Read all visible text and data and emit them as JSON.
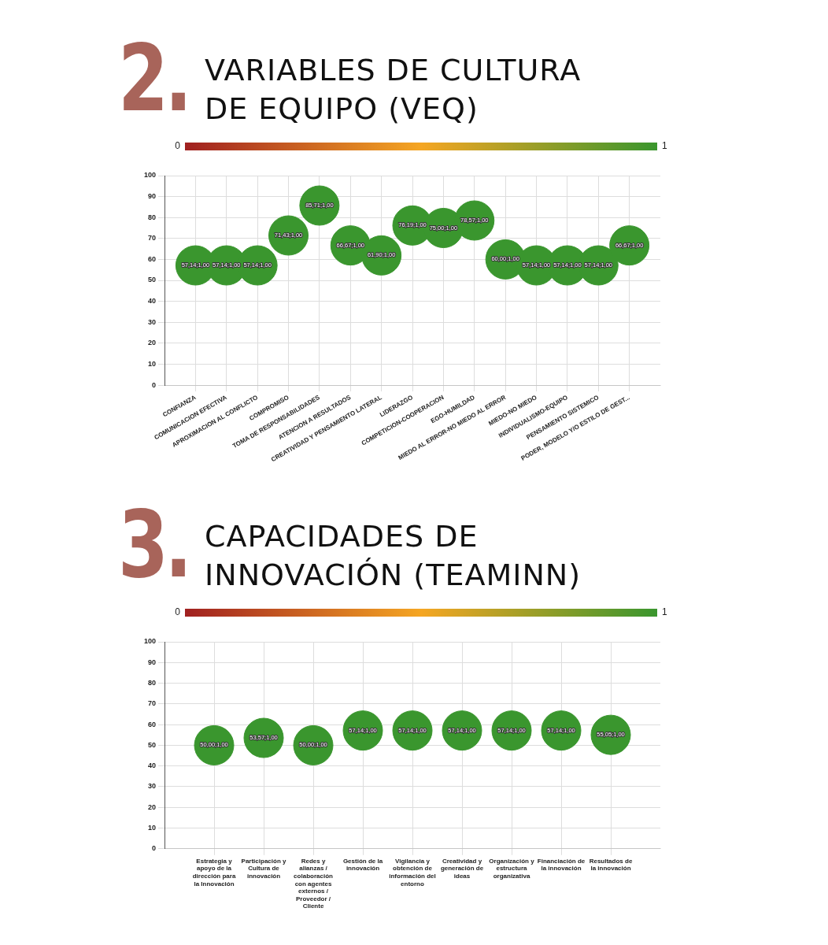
{
  "chart_data": [
    {
      "type": "bubble",
      "title": "VARIABLES DE CULTURA DE EQUIPO (VEQ)",
      "annotations": [
        "2.",
        "0",
        "1"
      ],
      "categories": [
        "CONFIANZA",
        "COMUNICACION EFECTIVA",
        "APROXIMACION AL CONFLICTO",
        "COMPROMISO",
        "TOMA DE RESPONSABILIDADES",
        "ATENCION A RESULTADOS",
        "CREATIVIDAD Y PENSAMIENTO LATERAL",
        "LIDERAZGO",
        "COMPETICION-COOPERACION",
        "EGO-HUMILDAD",
        "MIEDO AL ERROR-NO MIEDO AL ERROR",
        "MIEDO-NO MIEDO",
        "INDIVIDUALISMO-EQUIPO",
        "PENSAMIENTO SISTEMICO",
        "PODER, MODELO Y/O ESTILO DE GEST..."
      ],
      "values": [
        57.14,
        57.14,
        57.14,
        71.43,
        85.71,
        66.67,
        61.9,
        76.19,
        75,
        78.57,
        60,
        57.14,
        57.14,
        57.14,
        66.67
      ],
      "value_labels": [
        "57,14;1,00",
        "57,14;1,00",
        "57,14;1,00",
        "71,43;1,00",
        "85,71;1,00",
        "66,67;1,00",
        "61,90;1,00",
        "76,19;1,00",
        "75,00;1,00",
        "78,57;1,00",
        "60,00;1,00",
        "57,14;1,00",
        "57,14;1,00",
        "57,14;1,00",
        "66,67;1,00"
      ],
      "sizes": [
        1,
        1,
        1,
        1,
        1,
        1,
        1,
        1,
        1,
        1,
        1,
        1,
        1,
        1,
        1
      ],
      "colors": [
        "#3a962e",
        "#3a962e",
        "#3a962e",
        "#3a962e",
        "#3a962e",
        "#3a962e",
        "#3a962e",
        "#3a962e",
        "#3a962e",
        "#3a962e",
        "#3a962e",
        "#3a962e",
        "#3a962e",
        "#3a962e",
        "#3a962e"
      ],
      "ylim": [
        0,
        100
      ],
      "yticks": [
        0,
        10,
        20,
        30,
        40,
        50,
        60,
        70,
        80,
        90,
        100
      ],
      "grid": true
    },
    {
      "type": "bubble",
      "title": "CAPACIDADES DE INNOVACIÓN (TEAMINN)",
      "annotations": [
        "3.",
        "0",
        "1"
      ],
      "categories": [
        "Estrategia y apoyo de la dirección para la Innovación",
        "Participación y Cultura de innovación",
        "Redes y alianzas / colaboración con agentes externos / Proveedor / Cliente",
        "Gestión de la innovación",
        "Vigilancia y obtención de información del entorno",
        "Creatividad y generación de ideas",
        "Organización y estructura organizativa",
        "Financiación de la innovación",
        "Resultados de la innovación"
      ],
      "values": [
        50,
        53.57,
        50,
        57.14,
        57.14,
        57.14,
        57.14,
        57.14,
        55.05
      ],
      "value_labels": [
        "50,00;1,00",
        "53,57;1,00",
        "50,00;1,00",
        "57,14;1,00",
        "57,14;1,00",
        "57,14;1,00",
        "57,14;1,00",
        "57,14;1,00",
        "55,05;1,00"
      ],
      "sizes": [
        1,
        1,
        1,
        1,
        1,
        1,
        1,
        1,
        1
      ],
      "colors": [
        "#3a962e",
        "#3a962e",
        "#3a962e",
        "#3a962e",
        "#3a962e",
        "#3a962e",
        "#3a962e",
        "#3a962e",
        "#3a962e"
      ],
      "ylim": [
        0,
        100
      ],
      "yticks": [
        0,
        10,
        20,
        30,
        40,
        50,
        60,
        70,
        80,
        90,
        100
      ],
      "grid": true
    }
  ]
}
